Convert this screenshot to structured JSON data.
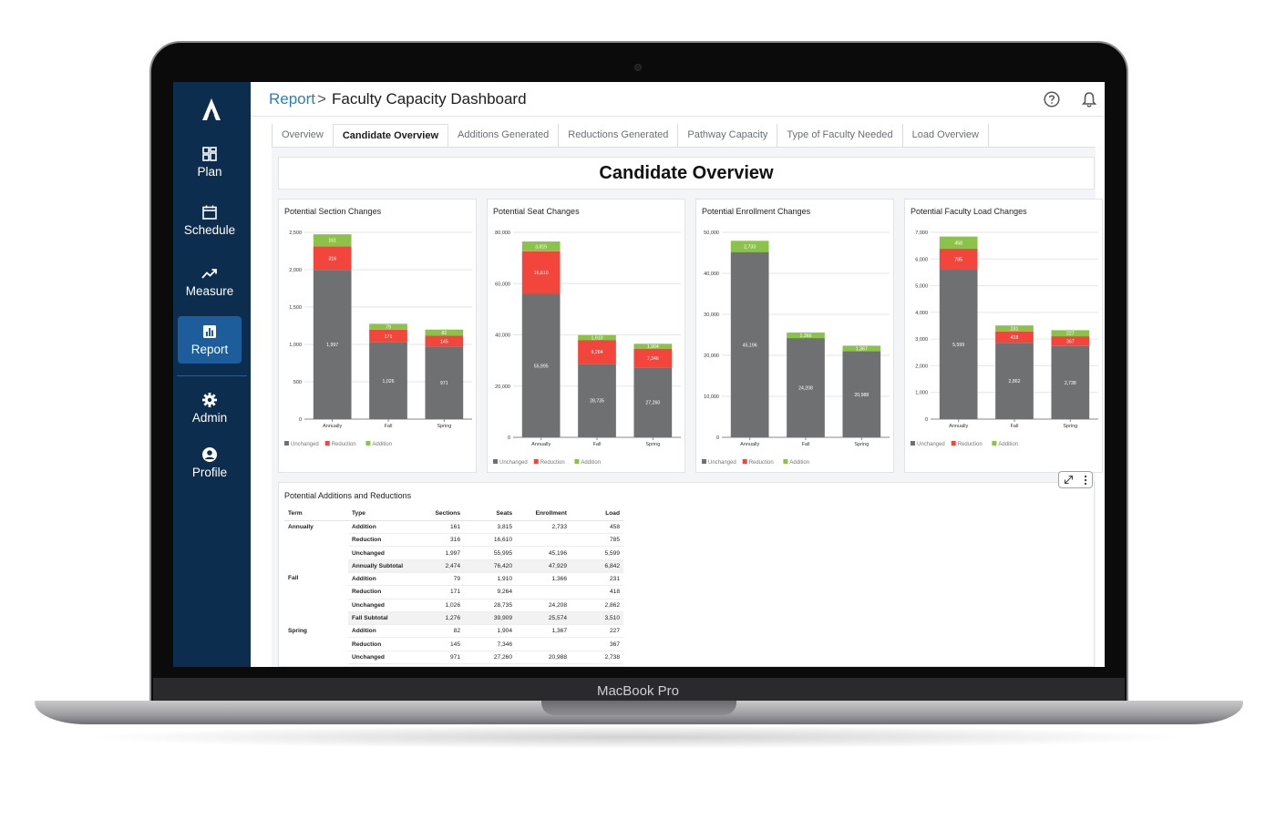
{
  "device": {
    "label": "MacBook Pro"
  },
  "sidebar": {
    "items": [
      {
        "label": "Plan",
        "icon": "dashboard-grid-icon"
      },
      {
        "label": "Schedule",
        "icon": "calendar-icon"
      },
      {
        "label": "Measure",
        "icon": "trending-up-icon"
      },
      {
        "label": "Report",
        "icon": "bar-chart-icon",
        "active": true
      },
      {
        "label": "Admin",
        "icon": "gear-icon"
      },
      {
        "label": "Profile",
        "icon": "user-circle-icon"
      }
    ],
    "bg_color": "#0d2d4f",
    "active_color": "#1d5d9b"
  },
  "header": {
    "breadcrumb_link": "Report",
    "separator": ">",
    "title": "Faculty Capacity Dashboard"
  },
  "tabs": [
    {
      "label": "Overview"
    },
    {
      "label": "Candidate Overview",
      "active": true
    },
    {
      "label": "Additions Generated"
    },
    {
      "label": "Reductions Generated"
    },
    {
      "label": "Pathway Capacity"
    },
    {
      "label": "Type of Faculty Needed"
    },
    {
      "label": "Load Overview"
    }
  ],
  "page_title": "Candidate Overview",
  "legend": [
    "Unchanged",
    "Reduction",
    "Addition"
  ],
  "colors": {
    "unchanged": "#6e7072",
    "reduction": "#f2453b",
    "addition": "#8bc34a"
  },
  "chart_data": [
    {
      "type": "bar",
      "title": "Potential Section Changes",
      "categories": [
        "Annually",
        "Fall",
        "Spring"
      ],
      "stacked": true,
      "ylim": [
        0,
        2500
      ],
      "yticks": [
        "0",
        "500",
        "1,000",
        "1,500",
        "2,000",
        "2,500"
      ],
      "series": [
        {
          "name": "Unchanged",
          "values": [
            1997,
            1026,
            971
          ],
          "labels": [
            "1,997",
            "1,026",
            "971"
          ]
        },
        {
          "name": "Reduction",
          "values": [
            316,
            171,
            145
          ],
          "labels": [
            "316",
            "171",
            "145"
          ]
        },
        {
          "name": "Addition",
          "values": [
            161,
            79,
            82
          ],
          "labels": [
            "161",
            "79",
            "82"
          ]
        }
      ],
      "legend": "bottom-left"
    },
    {
      "type": "bar",
      "title": "Potential Seat Changes",
      "categories": [
        "Annually",
        "Fall",
        "Spring"
      ],
      "stacked": true,
      "ylim": [
        0,
        80000
      ],
      "yticks": [
        "0",
        "20,000",
        "40,000",
        "60,000",
        "80,000"
      ],
      "series": [
        {
          "name": "Unchanged",
          "values": [
            55995,
            28735,
            27260
          ],
          "labels": [
            "55,995",
            "28,735",
            "27,260"
          ]
        },
        {
          "name": "Reduction",
          "values": [
            16610,
            9264,
            7346
          ],
          "labels": [
            "16,610",
            "9,264",
            "7,346"
          ]
        },
        {
          "name": "Addition",
          "values": [
            3815,
            1910,
            1904
          ],
          "labels": [
            "3,815",
            "1,910",
            "1,904"
          ]
        }
      ],
      "legend": "bottom-left"
    },
    {
      "type": "bar",
      "title": "Potential Enrollment Changes",
      "categories": [
        "Annually",
        "Fall",
        "Spring"
      ],
      "stacked": true,
      "ylim": [
        0,
        50000
      ],
      "yticks": [
        "0",
        "10,000",
        "20,000",
        "30,000",
        "40,000",
        "50,000"
      ],
      "series": [
        {
          "name": "Unchanged",
          "values": [
            45196,
            24208,
            20988
          ],
          "labels": [
            "45,196",
            "24,208",
            "20,988"
          ]
        },
        {
          "name": "Reduction",
          "values": [
            0,
            0,
            0
          ],
          "labels": [
            "",
            "",
            ""
          ]
        },
        {
          "name": "Addition",
          "values": [
            2733,
            1366,
            1367
          ],
          "labels": [
            "2,733",
            "1,366",
            "1,367"
          ]
        }
      ],
      "legend": "bottom-left"
    },
    {
      "type": "bar",
      "title": "Potential Faculty Load Changes",
      "categories": [
        "Annually",
        "Fall",
        "Spring"
      ],
      "stacked": true,
      "ylim": [
        0,
        7000
      ],
      "yticks": [
        "0",
        "1,000",
        "2,000",
        "3,000",
        "4,000",
        "5,000",
        "6,000",
        "7,000"
      ],
      "series": [
        {
          "name": "Unchanged",
          "values": [
            5599,
            2862,
            2738
          ],
          "labels": [
            "5,599",
            "2,862",
            "2,738"
          ]
        },
        {
          "name": "Reduction",
          "values": [
            785,
            418,
            367
          ],
          "labels": [
            "785",
            "418",
            "367"
          ]
        },
        {
          "name": "Addition",
          "values": [
            458,
            231,
            227
          ],
          "labels": [
            "458",
            "231",
            "227"
          ]
        }
      ],
      "legend": "bottom-left"
    }
  ],
  "table": {
    "title": "Potential Additions and Reductions",
    "columns": [
      "Term",
      "Type",
      "Sections",
      "Seats",
      "Enrollment",
      "Load"
    ],
    "rows": [
      {
        "term": "Annually",
        "type": "Addition",
        "sections": "161",
        "seats": "3,815",
        "enrollment": "2,733",
        "load": "458"
      },
      {
        "term": "",
        "type": "Reduction",
        "sections": "316",
        "seats": "16,610",
        "enrollment": "",
        "load": "785"
      },
      {
        "term": "",
        "type": "Unchanged",
        "sections": "1,997",
        "seats": "55,995",
        "enrollment": "45,196",
        "load": "5,599"
      },
      {
        "term": "",
        "type": "Annually Subtotal",
        "sections": "2,474",
        "seats": "76,420",
        "enrollment": "47,929",
        "load": "6,842",
        "subtotal": true
      },
      {
        "term": "Fall",
        "type": "Addition",
        "sections": "79",
        "seats": "1,910",
        "enrollment": "1,366",
        "load": "231"
      },
      {
        "term": "",
        "type": "Reduction",
        "sections": "171",
        "seats": "9,264",
        "enrollment": "",
        "load": "418"
      },
      {
        "term": "",
        "type": "Unchanged",
        "sections": "1,026",
        "seats": "28,735",
        "enrollment": "24,208",
        "load": "2,862"
      },
      {
        "term": "",
        "type": "Fall Subtotal",
        "sections": "1,276",
        "seats": "39,909",
        "enrollment": "25,574",
        "load": "3,510",
        "subtotal": true
      },
      {
        "term": "Spring",
        "type": "Addition",
        "sections": "82",
        "seats": "1,904",
        "enrollment": "1,367",
        "load": "227"
      },
      {
        "term": "",
        "type": "Reduction",
        "sections": "145",
        "seats": "7,346",
        "enrollment": "",
        "load": "367"
      },
      {
        "term": "",
        "type": "Unchanged",
        "sections": "971",
        "seats": "27,260",
        "enrollment": "20,988",
        "load": "2,738"
      }
    ]
  }
}
